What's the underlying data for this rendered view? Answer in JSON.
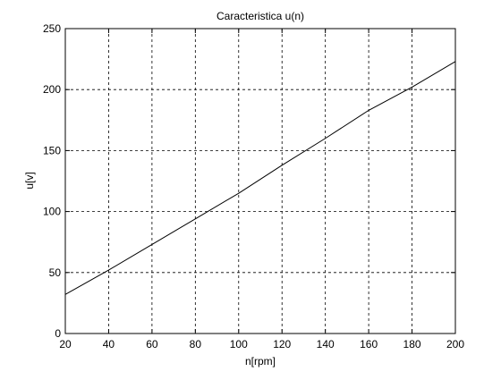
{
  "chart_data": {
    "type": "line",
    "title": "Caracteristica u(n)",
    "xlabel": "n[rpm]",
    "ylabel": "u[v]",
    "xlim": [
      20,
      200
    ],
    "ylim": [
      0,
      250
    ],
    "x_ticks": [
      20,
      40,
      60,
      80,
      100,
      120,
      140,
      160,
      180,
      200
    ],
    "y_ticks": [
      0,
      50,
      100,
      150,
      200,
      250
    ],
    "grid": true,
    "grid_style": "dashed",
    "line_color": "#000000",
    "series": [
      {
        "x": [
          20,
          40,
          60,
          80,
          100,
          120,
          140,
          160,
          180,
          200
        ],
        "values": [
          32,
          52,
          73,
          94,
          115,
          138,
          160,
          183,
          202,
          223
        ]
      }
    ]
  }
}
